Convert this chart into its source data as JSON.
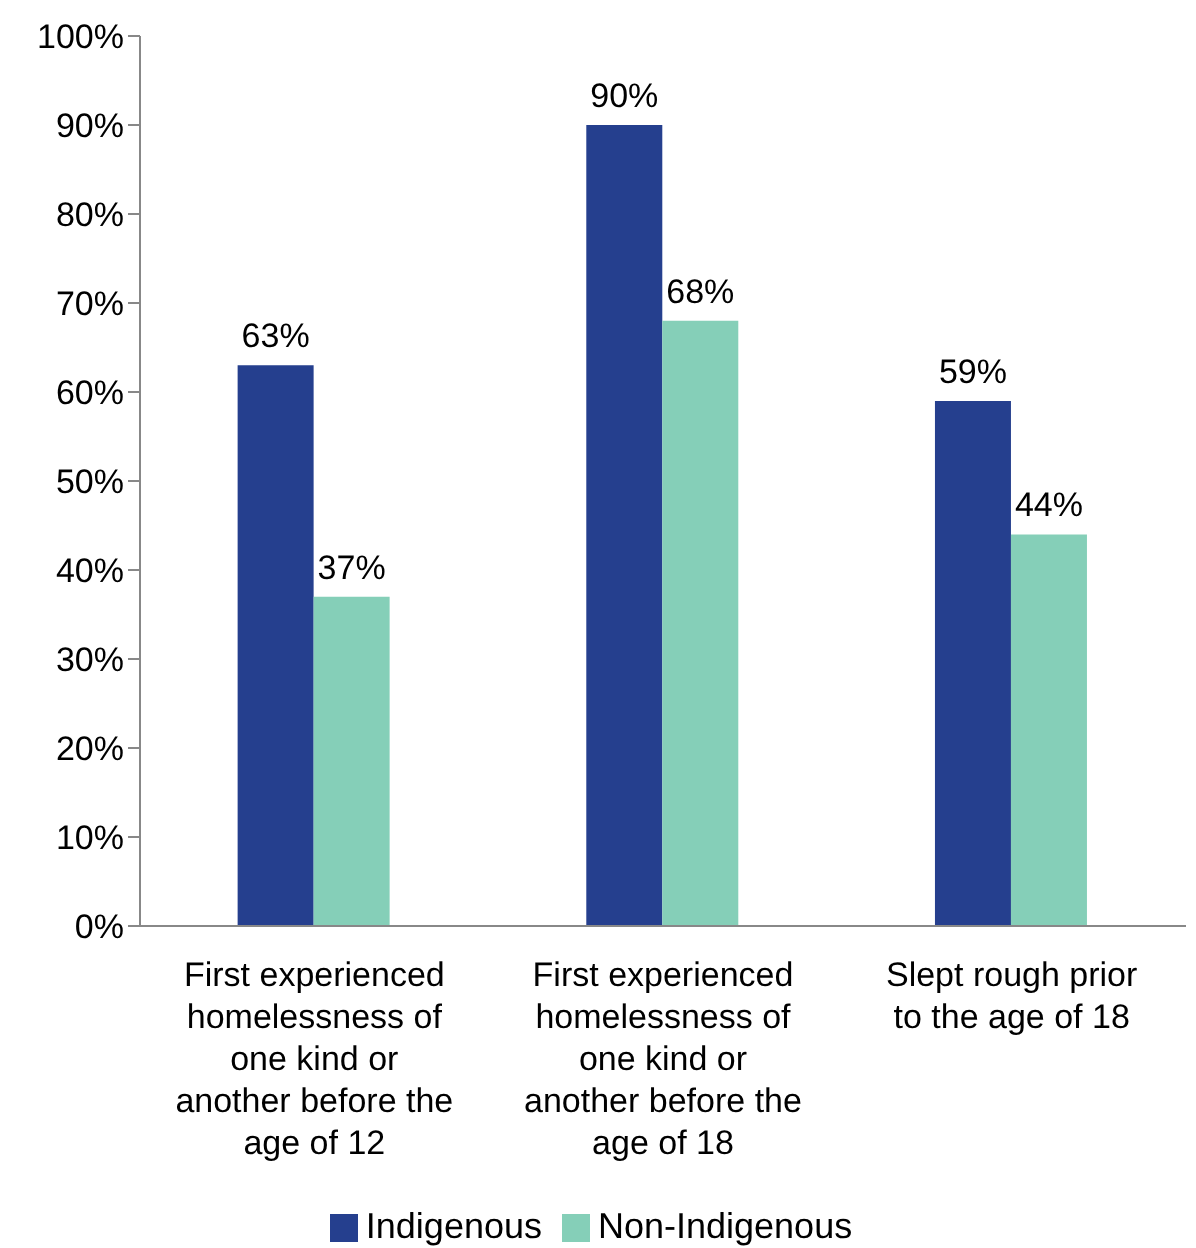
{
  "chart_data": {
    "type": "bar",
    "categories": [
      "First experienced homelessness of one kind or another before the age of 12",
      "First experienced homelessness of one kind or another before the age of 18",
      "Slept rough prior to the age of 18"
    ],
    "series": [
      {
        "name": "Indigenous",
        "color": "#253f8e",
        "values": [
          63,
          90,
          59
        ],
        "value_labels": [
          "63%",
          "90%",
          "59%"
        ]
      },
      {
        "name": "Non-Indigenous",
        "color": "#85cfb8",
        "values": [
          37,
          68,
          44
        ],
        "value_labels": [
          "37%",
          "68%",
          "44%"
        ]
      }
    ],
    "ylim": [
      0,
      100
    ],
    "yticks": [
      {
        "value": 0,
        "label": "0%"
      },
      {
        "value": 10,
        "label": "10%"
      },
      {
        "value": 20,
        "label": "20%"
      },
      {
        "value": 30,
        "label": "30%"
      },
      {
        "value": 40,
        "label": "40%"
      },
      {
        "value": 50,
        "label": "50%"
      },
      {
        "value": 60,
        "label": "60%"
      },
      {
        "value": 70,
        "label": "70%"
      },
      {
        "value": 80,
        "label": "80%"
      },
      {
        "value": 90,
        "label": "90%"
      },
      {
        "value": 100,
        "label": "100%"
      }
    ],
    "grid": false,
    "legend": "bottom"
  }
}
